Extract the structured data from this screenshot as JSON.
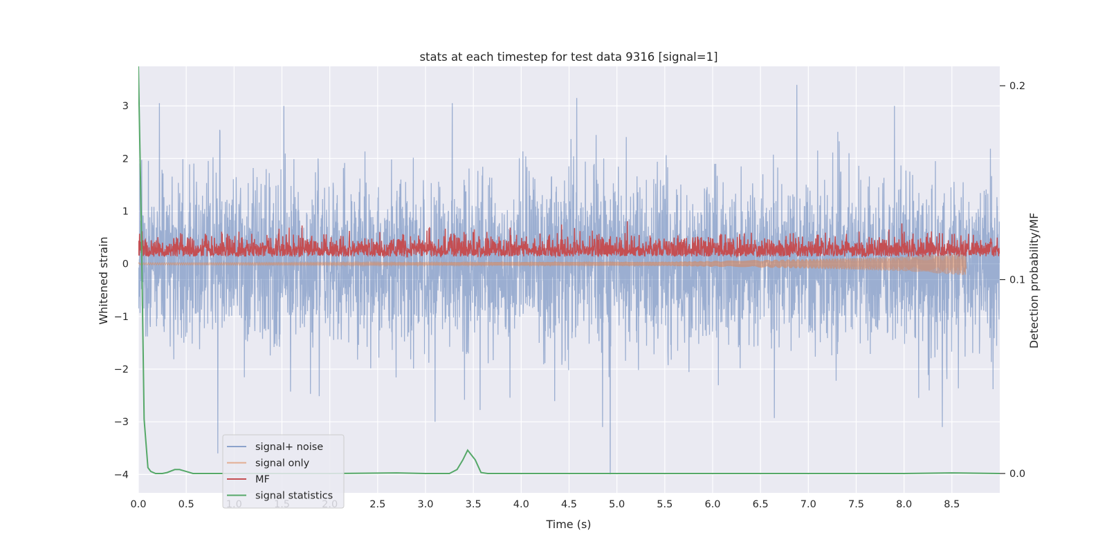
{
  "chart_data": {
    "type": "line",
    "title": "stats at each timestep for test data 9316 [signal=1]",
    "xlabel": "Time (s)",
    "ylabel": "Whitened strain",
    "y2label": "Detection probability/MF",
    "xlim": [
      0.0,
      9.0
    ],
    "ylim": [
      -4.35,
      3.75
    ],
    "y2lim": [
      -0.01,
      0.21
    ],
    "x_ticks": [
      "0.0",
      "0.5",
      "1.0",
      "1.5",
      "2.0",
      "2.5",
      "3.0",
      "3.5",
      "4.0",
      "4.5",
      "5.0",
      "5.5",
      "6.0",
      "6.5",
      "7.0",
      "7.5",
      "8.0",
      "8.5"
    ],
    "y_ticks": [
      "3",
      "2",
      "1",
      "0",
      "−1",
      "−2",
      "−3",
      "−4"
    ],
    "y2_ticks": [
      "0.2",
      "0.1",
      "0.0"
    ],
    "grid": true,
    "legend_position": "lower-left",
    "series": [
      {
        "name": "signal+ noise",
        "color": "#4c72b0",
        "axis": "left",
        "style": "noise-trace",
        "x_range": [
          0.0,
          9.0
        ],
        "typical_amplitude": 1.1,
        "notable_peaks": [
          {
            "x": 0.22,
            "y": 3.05
          },
          {
            "x": 0.83,
            "y": 2.6
          },
          {
            "x": 0.83,
            "y": -3.6
          },
          {
            "x": 1.52,
            "y": 3.0
          },
          {
            "x": 3.28,
            "y": 3.05
          },
          {
            "x": 3.1,
            "y": -3.0
          },
          {
            "x": 4.58,
            "y": 3.15
          },
          {
            "x": 4.93,
            "y": -4.0
          },
          {
            "x": 4.85,
            "y": -3.1
          },
          {
            "x": 6.88,
            "y": 3.4
          },
          {
            "x": 7.9,
            "y": 3.0
          },
          {
            "x": 8.4,
            "y": -3.1
          }
        ]
      },
      {
        "name": "signal only",
        "color": "#dd8452",
        "axis": "left",
        "style": "chirp",
        "x_range": [
          0.0,
          8.65
        ],
        "envelope": [
          [
            0.0,
            0.02
          ],
          [
            5.5,
            0.04
          ],
          [
            7.0,
            0.09
          ],
          [
            8.0,
            0.14
          ],
          [
            8.65,
            0.22
          ]
        ]
      },
      {
        "name": "MF",
        "color": "#c44e52",
        "axis": "left",
        "style": "noise-trace",
        "x_range": [
          0.0,
          9.0
        ],
        "baseline": 0.25,
        "typical_amplitude": 0.25
      },
      {
        "name": "signal statistics",
        "color": "#55a868",
        "axis": "right",
        "style": "line",
        "x": [
          0.0,
          0.03,
          0.06,
          0.1,
          0.13,
          0.18,
          0.25,
          0.3,
          0.38,
          0.43,
          0.5,
          0.57,
          0.65,
          1.0,
          2.0,
          2.7,
          3.0,
          3.25,
          3.33,
          3.39,
          3.44,
          3.52,
          3.58,
          3.65,
          4.0,
          6.0,
          8.0,
          8.5,
          9.0
        ],
        "y": [
          0.21,
          0.13,
          0.028,
          0.003,
          0.001,
          0.0,
          0.0,
          0.0005,
          0.002,
          0.002,
          0.001,
          0.0,
          0.0,
          0.0,
          0.0,
          0.0003,
          0.0,
          0.0,
          0.002,
          0.007,
          0.012,
          0.007,
          0.0005,
          0.0,
          0.0,
          0.0,
          0.0,
          0.0003,
          0.0
        ]
      }
    ]
  }
}
